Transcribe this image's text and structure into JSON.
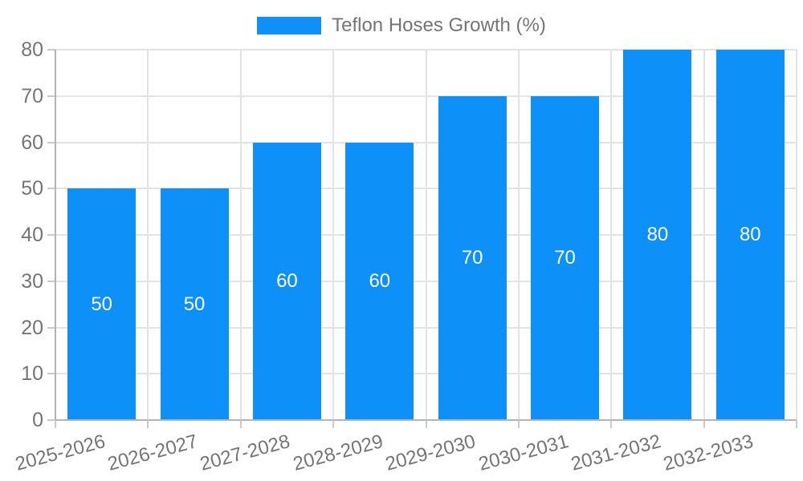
{
  "legend": {
    "label": "Teflon Hoses Growth (%)",
    "swatch_icon": "legend-color-swatch"
  },
  "chart_data": {
    "type": "bar",
    "title": "",
    "xlabel": "",
    "ylabel": "",
    "categories": [
      "2025-2026",
      "2026-2027",
      "2027-2028",
      "2028-2029",
      "2029-2030",
      "2030-2031",
      "2031-2032",
      "2032-2033"
    ],
    "series": [
      {
        "name": "Teflon Hoses Growth (%)",
        "values": [
          50,
          50,
          60,
          60,
          70,
          70,
          80,
          80
        ]
      }
    ],
    "value_labels": [
      "50",
      "50",
      "60",
      "60",
      "70",
      "70",
      "80",
      "80"
    ],
    "yticks": [
      0,
      10,
      20,
      30,
      40,
      50,
      60,
      70,
      80
    ],
    "ylim": [
      0,
      80
    ],
    "grid": true,
    "legend_position": "top-center"
  },
  "colors": {
    "bar": "#0e90f9",
    "grid": "#e3e3e3",
    "axis": "#b3b3b3",
    "tick_stub": "#c9c9c9",
    "tick_text": "#757575",
    "value_label_text": "#ffffff"
  }
}
